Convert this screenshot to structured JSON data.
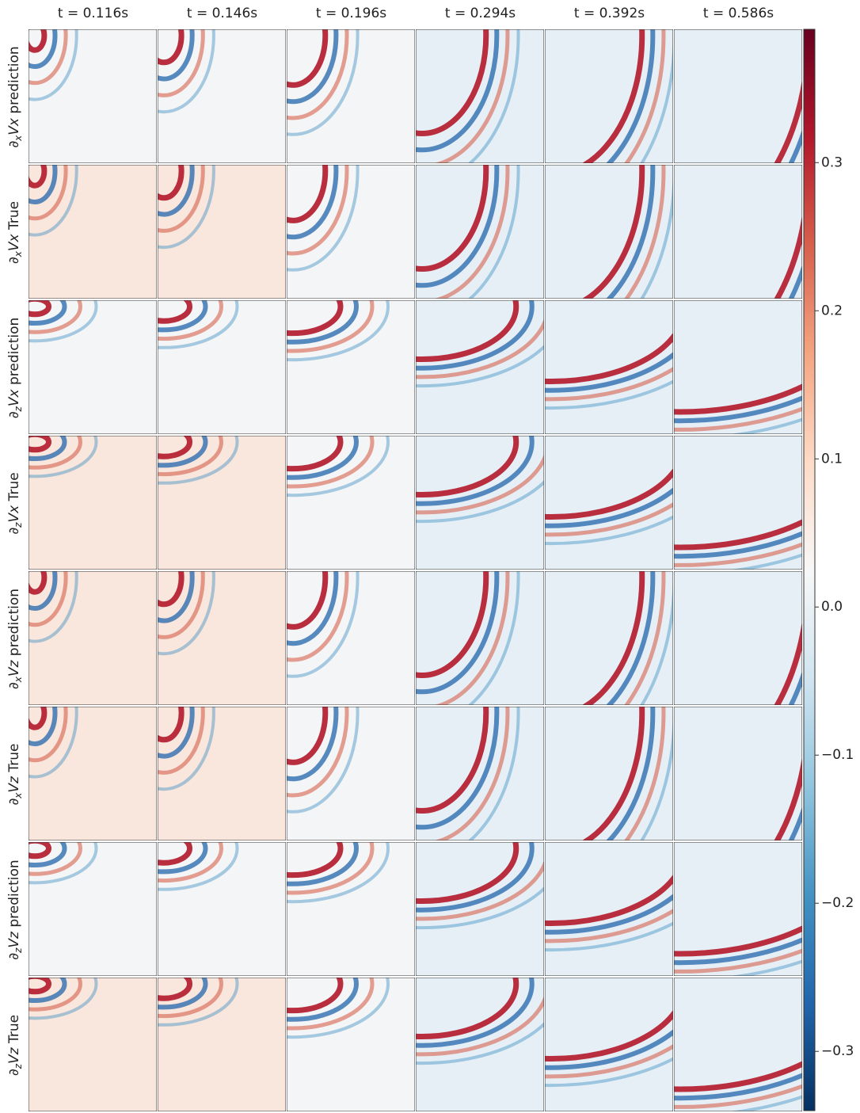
{
  "chart_data": {
    "type": "heatmap-grid",
    "columns": [
      "t = 0.116s",
      "t = 0.146s",
      "t = 0.196s",
      "t = 0.294s",
      "t = 0.392s",
      "t = 0.586s"
    ],
    "rows": [
      {
        "operator": "∂",
        "sub": "x",
        "field": "Vx",
        "label": "prediction"
      },
      {
        "operator": "∂",
        "sub": "x",
        "field": "Vx",
        "label": "True"
      },
      {
        "operator": "∂",
        "sub": "z",
        "field": "Vx",
        "label": "prediction"
      },
      {
        "operator": "∂",
        "sub": "z",
        "field": "Vx",
        "label": "True"
      },
      {
        "operator": "∂",
        "sub": "x",
        "field": "Vz",
        "label": "prediction"
      },
      {
        "operator": "∂",
        "sub": "x",
        "field": "Vz",
        "label": "True"
      },
      {
        "operator": "∂",
        "sub": "z",
        "field": "Vz",
        "label": "prediction"
      },
      {
        "operator": "∂",
        "sub": "z",
        "field": "Vz",
        "label": "True"
      }
    ],
    "colorbar": {
      "colormap": "RdBu_r",
      "ylim": [
        -0.34,
        0.39
      ],
      "yticks": [
        0.3,
        0.2,
        0.1,
        {
          "value": 0,
          "label": "0.0"
        },
        {
          "value": -0.1,
          "label": "−0.1"
        },
        {
          "value": -0.2,
          "label": "−0.2"
        },
        {
          "value": -0.3,
          "label": "−0.3"
        }
      ]
    }
  }
}
